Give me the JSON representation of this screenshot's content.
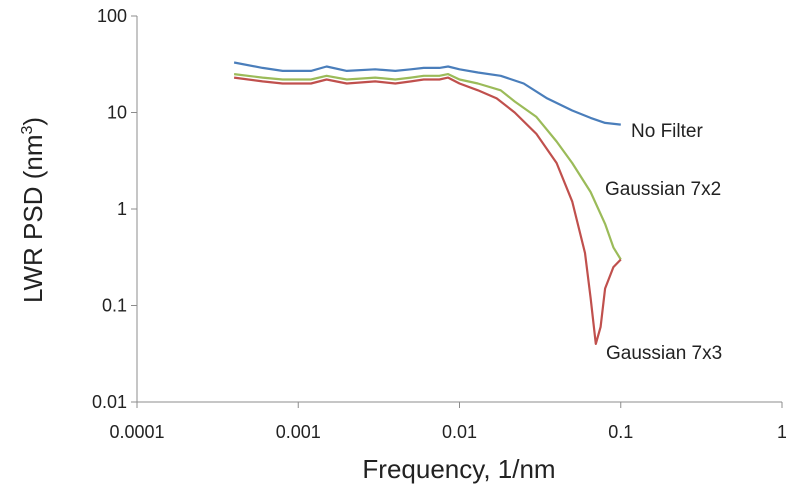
{
  "chart_data": {
    "type": "line",
    "xlabel": "Frequency, 1/nm",
    "ylabel_main": "LWR PSD (nm",
    "ylabel_sup": "3",
    "ylabel_close": ")",
    "xscale": "log",
    "yscale": "log",
    "xlim": [
      0.0001,
      1
    ],
    "ylim": [
      0.01,
      100
    ],
    "x_ticks": [
      "0.0001",
      "0.001",
      "0.01",
      "0.1",
      "1"
    ],
    "y_ticks": [
      "100",
      "10",
      "1",
      "0.1",
      "0.01"
    ],
    "grid": false,
    "series": [
      {
        "name": "No Filter",
        "color": "#4a7ebb",
        "points": [
          [
            0.0004,
            33
          ],
          [
            0.0006,
            29
          ],
          [
            0.0008,
            27
          ],
          [
            0.0012,
            27
          ],
          [
            0.0015,
            30
          ],
          [
            0.002,
            27
          ],
          [
            0.003,
            28
          ],
          [
            0.004,
            27
          ],
          [
            0.005,
            28
          ],
          [
            0.006,
            29
          ],
          [
            0.0075,
            29
          ],
          [
            0.0085,
            30
          ],
          [
            0.01,
            28
          ],
          [
            0.013,
            26
          ],
          [
            0.018,
            24
          ],
          [
            0.025,
            20
          ],
          [
            0.035,
            14
          ],
          [
            0.05,
            10.5
          ],
          [
            0.065,
            8.8
          ],
          [
            0.08,
            7.8
          ],
          [
            0.1,
            7.5
          ]
        ]
      },
      {
        "name": "Gaussian 7x2",
        "color": "#9bbb59",
        "points": [
          [
            0.0004,
            25
          ],
          [
            0.0006,
            23
          ],
          [
            0.0008,
            22
          ],
          [
            0.0012,
            22
          ],
          [
            0.0015,
            24
          ],
          [
            0.002,
            22
          ],
          [
            0.003,
            23
          ],
          [
            0.004,
            22
          ],
          [
            0.005,
            23
          ],
          [
            0.006,
            24
          ],
          [
            0.0075,
            24
          ],
          [
            0.0085,
            25
          ],
          [
            0.01,
            22
          ],
          [
            0.013,
            20
          ],
          [
            0.018,
            17
          ],
          [
            0.022,
            13
          ],
          [
            0.03,
            9
          ],
          [
            0.04,
            5
          ],
          [
            0.05,
            3
          ],
          [
            0.065,
            1.5
          ],
          [
            0.08,
            0.7
          ],
          [
            0.09,
            0.4
          ],
          [
            0.1,
            0.3
          ]
        ]
      },
      {
        "name": "Gaussian 7x3",
        "color": "#c0504d",
        "points": [
          [
            0.0004,
            23
          ],
          [
            0.0006,
            21
          ],
          [
            0.0008,
            20
          ],
          [
            0.0012,
            20
          ],
          [
            0.0015,
            22
          ],
          [
            0.002,
            20
          ],
          [
            0.003,
            21
          ],
          [
            0.004,
            20
          ],
          [
            0.005,
            21
          ],
          [
            0.006,
            22
          ],
          [
            0.0075,
            22
          ],
          [
            0.0085,
            23
          ],
          [
            0.01,
            20
          ],
          [
            0.013,
            17
          ],
          [
            0.017,
            14
          ],
          [
            0.022,
            10
          ],
          [
            0.03,
            6
          ],
          [
            0.04,
            3
          ],
          [
            0.05,
            1.2
          ],
          [
            0.06,
            0.35
          ],
          [
            0.065,
            0.12
          ],
          [
            0.07,
            0.04
          ],
          [
            0.075,
            0.06
          ],
          [
            0.08,
            0.15
          ],
          [
            0.09,
            0.25
          ],
          [
            0.1,
            0.3
          ]
        ]
      }
    ]
  }
}
